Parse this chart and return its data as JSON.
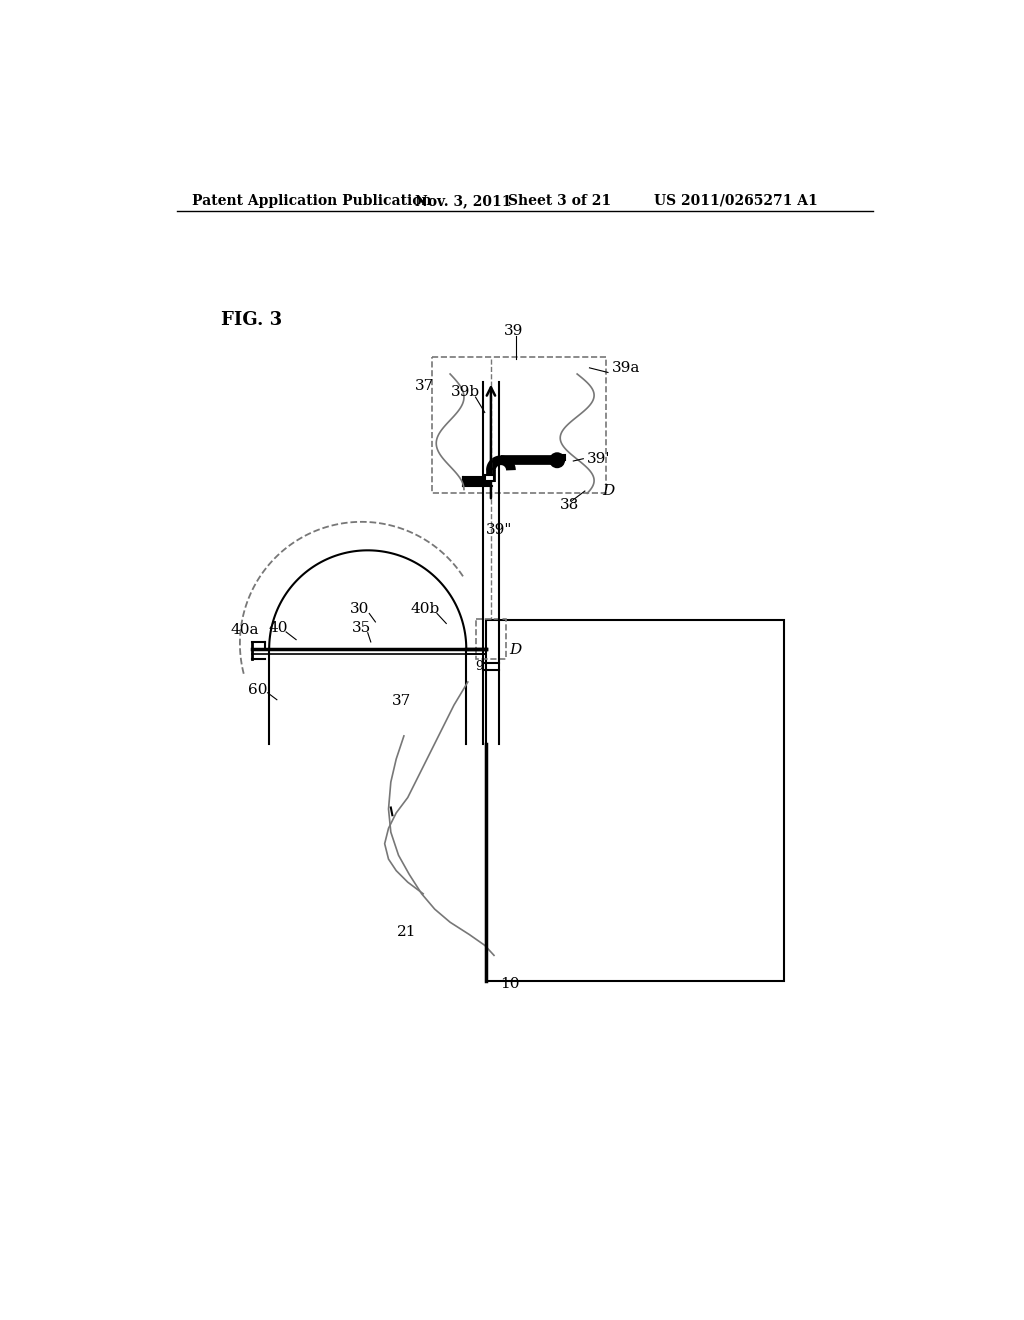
{
  "bg_color": "#ffffff",
  "header_text1": "Patent Application Publication",
  "header_text2": "Nov. 3, 2011",
  "header_text3": "Sheet 3 of 21",
  "header_text4": "US 2011/0265271 A1",
  "fig_label": "FIG. 3",
  "line_color": "#000000",
  "dashed_color": "#777777"
}
